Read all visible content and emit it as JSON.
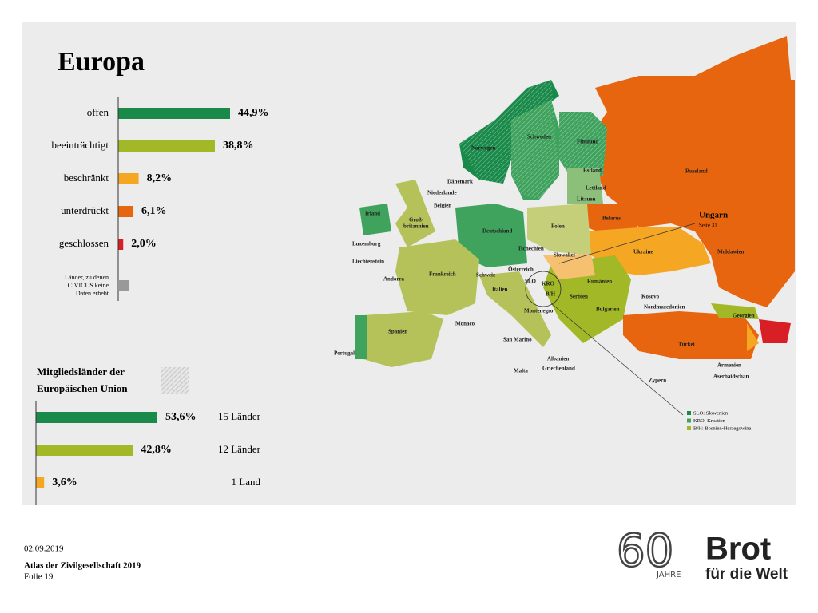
{
  "title": "Europa",
  "chart_data": [
    {
      "type": "bar",
      "categories": [
        "offen",
        "beeinträchtigt",
        "beschränkt",
        "unterdrückt",
        "geschlossen"
      ],
      "values": [
        44.9,
        38.8,
        8.2,
        6.1,
        2.0
      ],
      "value_labels": [
        "44,9%",
        "38,8%",
        "8,2%",
        "6,1%",
        "2,0%"
      ],
      "colors": [
        "#1a8a4a",
        "#a3b826",
        "#f5a623",
        "#e8650f",
        "#d91f26"
      ],
      "note": "Länder, zu denen CIVICUS keine Daten erhebt"
    },
    {
      "type": "bar",
      "title": "Mitgliedsländer der Europäischen Union",
      "values": [
        53.6,
        42.8,
        3.6
      ],
      "value_labels": [
        "53,6%",
        "42,8%",
        "3,6%"
      ],
      "annotations": [
        "15 Länder",
        "12 Länder",
        "1 Land"
      ],
      "colors": [
        "#1a8a4a",
        "#a3b826",
        "#f5a623"
      ]
    }
  ],
  "map": {
    "labels": [
      "Norwegen",
      "Schweden",
      "Finnland",
      "Russland",
      "Dänemark",
      "Niederlande",
      "Estland",
      "Lettland",
      "Litauen",
      "Irland",
      "Groß-",
      "britannien",
      "Belgien",
      "Deutschland",
      "Polen",
      "Belarus",
      "Luxemburg",
      "Tschechien",
      "Slowakei",
      "Ukraine",
      "Moldawien",
      "Liechtenstein",
      "Österreich",
      "Frankreich",
      "Schweiz",
      "Andorra",
      "SLO",
      "KRO",
      "Rumänien",
      "Italien",
      "B/H",
      "Serbien",
      "Kosovo",
      "Montenegro",
      "Nordmazedonien",
      "Bulgarien",
      "Spanien",
      "Monaco",
      "Georgien",
      "Portugal",
      "San Marino",
      "Türkei",
      "Albanien",
      "Armenien",
      "Griechenland",
      "Malta",
      "Aserbaidschan",
      "Zypern"
    ],
    "callout_title": "Ungarn",
    "callout_subtitle": "Seite 31",
    "legend": [
      "SLO: Slowenien",
      "KRO: Kroatien",
      "B/H: Bosnien-Herzegowina"
    ]
  },
  "footer": {
    "date": "02.09.2019",
    "source": "Atlas der Zivilgesellschaft 2019",
    "slide": "Folie 19"
  },
  "logo": {
    "number": "60",
    "years": "JAHRE",
    "brand": "Brot",
    "tagline": "für die Welt"
  }
}
